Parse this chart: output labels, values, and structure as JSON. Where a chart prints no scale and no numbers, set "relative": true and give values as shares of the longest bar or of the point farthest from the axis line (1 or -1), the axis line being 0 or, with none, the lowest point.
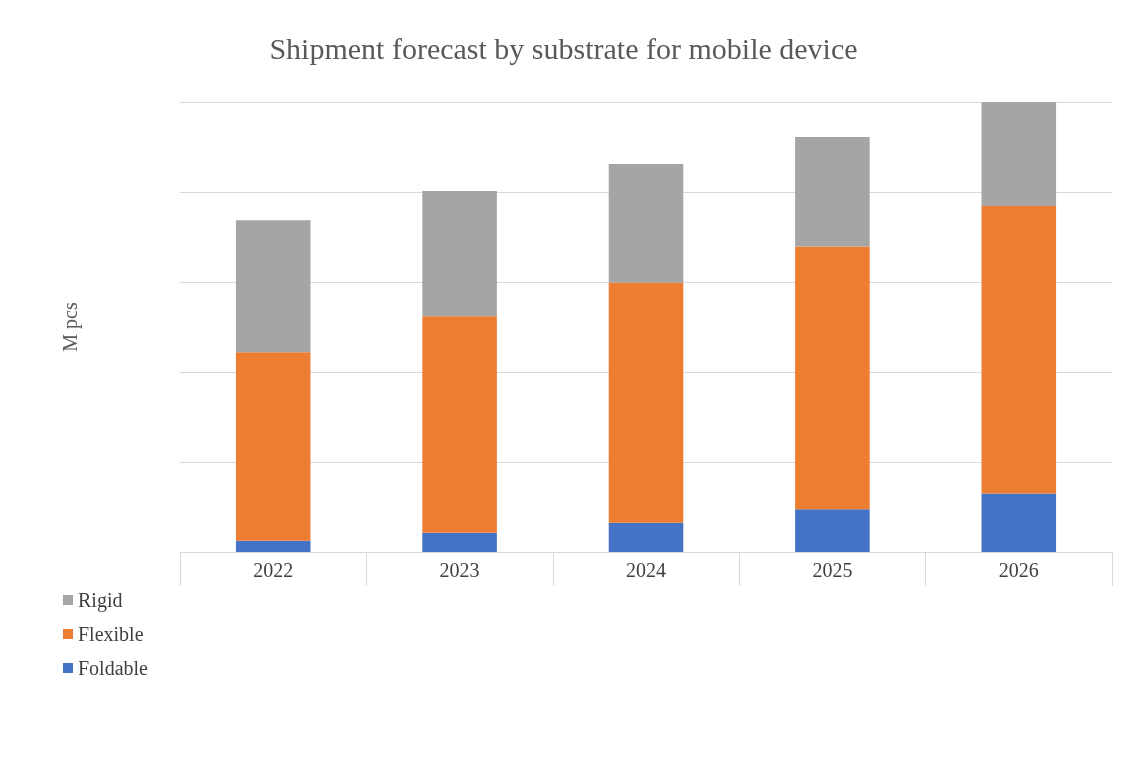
{
  "chart_data": {
    "type": "bar",
    "title": "Shipment forecast by substrate for mobile device",
    "ylabel": "M pcs",
    "categories": [
      "2022",
      "2023",
      "2024",
      "2025",
      "2026"
    ],
    "stacked": true,
    "relative": true,
    "grid": "y",
    "legend": "bottom left",
    "series": [
      {
        "name": "Foldable",
        "color": "#4472c4",
        "values": [
          0.025,
          0.043,
          0.065,
          0.095,
          0.13
        ]
      },
      {
        "name": "Flexible",
        "color": "#ed7d31",
        "values": [
          0.419,
          0.481,
          0.534,
          0.584,
          0.639
        ]
      },
      {
        "name": "Rigid",
        "color": "#a5a5a5",
        "values": [
          0.293,
          0.278,
          0.263,
          0.243,
          0.231
        ]
      }
    ]
  }
}
